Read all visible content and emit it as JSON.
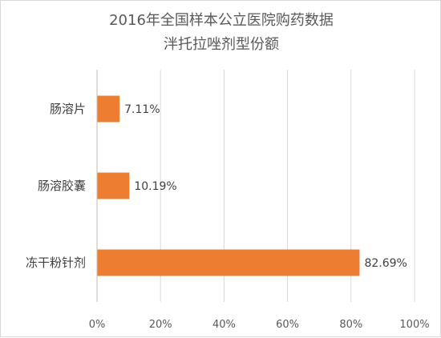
{
  "chart_data": {
    "type": "bar",
    "orientation": "horizontal",
    "title": "2016年全国样本公立医院购药数据",
    "subtitle": "泮托拉唑剂型份额",
    "categories": [
      "肠溶片",
      "肠溶胶囊",
      "冻干粉针剂"
    ],
    "values": [
      7.11,
      10.19,
      82.69
    ],
    "data_labels": [
      "7.11%",
      "10.19%",
      "82.69%"
    ],
    "xlim": [
      0,
      100
    ],
    "x_ticks": [
      0,
      20,
      40,
      60,
      80,
      100
    ],
    "x_tick_labels": [
      "0%",
      "20%",
      "40%",
      "60%",
      "80%",
      "100%"
    ],
    "grid": true,
    "legend": "none",
    "bar_color": "#ED7D31",
    "grid_color": "#D9D9D9",
    "axis_color": "#BFBFBF"
  }
}
